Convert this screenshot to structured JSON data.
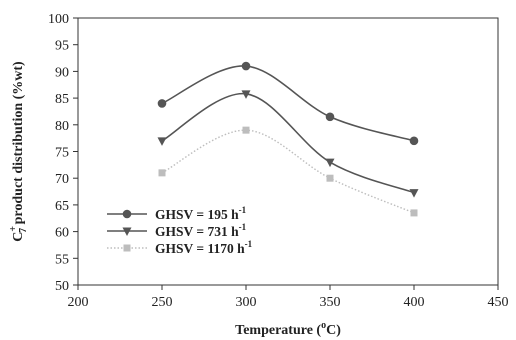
{
  "chart_data": {
    "type": "line",
    "xlabel": "Temperature (°C)",
    "xlabel_parts": {
      "main": "Temperature (",
      "sup": "o",
      "tail": "C)"
    },
    "ylabel_parts": {
      "c": "C",
      "sup": "+",
      "sub": "7",
      "rest": " product distribution (%wt)"
    },
    "xlim": [
      200,
      450
    ],
    "ylim": [
      50,
      100
    ],
    "xticks": [
      200,
      250,
      300,
      350,
      400,
      450
    ],
    "yticks": [
      50,
      55,
      60,
      65,
      70,
      75,
      80,
      85,
      90,
      95,
      100
    ],
    "x": [
      250,
      300,
      350,
      400
    ],
    "series": [
      {
        "name": "GHSV = 195 h",
        "sup": "-1",
        "values": [
          84,
          91,
          81.5,
          77
        ],
        "color": "#555555",
        "marker": "circle",
        "dash": "none"
      },
      {
        "name": "GHSV = 731 h",
        "sup": "-1",
        "values": [
          77,
          85.8,
          73,
          67.3
        ],
        "color": "#555555",
        "marker": "triangle-down",
        "dash": "none"
      },
      {
        "name": "GHSV = 1170 h",
        "sup": "-1",
        "values": [
          71,
          79,
          70,
          63.5
        ],
        "color": "#bdbdbd",
        "marker": "square",
        "dash": "dotted"
      }
    ],
    "legend": "lower-left",
    "grid": false
  }
}
